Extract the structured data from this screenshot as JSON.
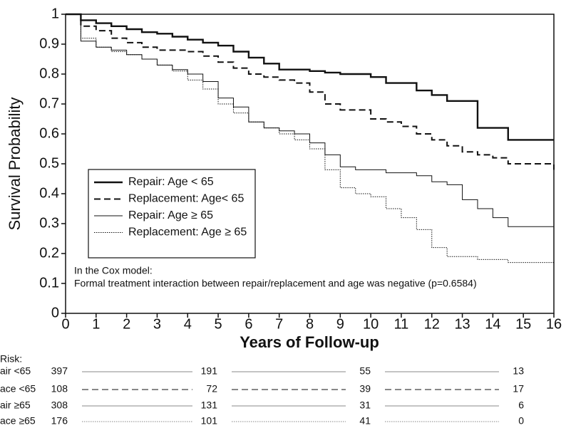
{
  "chart_data": {
    "type": "step",
    "y_label": "Survival Probability",
    "x_label": "Years of Follow-up",
    "xlim": [
      0,
      16
    ],
    "xticks": [
      0,
      1,
      2,
      3,
      4,
      5,
      6,
      7,
      8,
      9,
      10,
      11,
      12,
      13,
      14,
      15,
      16
    ],
    "ylim": [
      0,
      1
    ],
    "yticks": [
      0,
      0.1,
      0.2,
      0.3,
      0.4,
      0.5,
      0.6,
      0.7,
      0.8,
      0.9,
      1
    ],
    "legend": "center left",
    "x": [
      0,
      0.5,
      1,
      1.5,
      2,
      2.5,
      3,
      3.5,
      4,
      4.5,
      5,
      5.5,
      6,
      6.5,
      7,
      7.5,
      8,
      8.5,
      9,
      9.5,
      10,
      10.5,
      11,
      11.5,
      12,
      12.5,
      13,
      13.5,
      14,
      14.5,
      15,
      15.5,
      16
    ],
    "series": [
      {
        "name": "Repair: Age < 65",
        "color": "#111111",
        "line_style": "thick",
        "values": [
          1.0,
          0.98,
          0.97,
          0.96,
          0.95,
          0.94,
          0.935,
          0.925,
          0.915,
          0.905,
          0.895,
          0.875,
          0.855,
          0.835,
          0.815,
          0.815,
          0.81,
          0.805,
          0.8,
          0.8,
          0.79,
          0.77,
          0.77,
          0.745,
          0.73,
          0.71,
          0.71,
          0.62,
          0.62,
          0.58,
          0.58,
          0.58,
          0.58
        ]
      },
      {
        "name": "Replacement: Age< 65",
        "color": "#111111",
        "line_style": "dashed",
        "values": [
          1.0,
          0.96,
          0.945,
          0.92,
          0.905,
          0.89,
          0.88,
          0.88,
          0.875,
          0.86,
          0.84,
          0.82,
          0.8,
          0.79,
          0.78,
          0.77,
          0.74,
          0.7,
          0.68,
          0.68,
          0.65,
          0.64,
          0.625,
          0.6,
          0.58,
          0.56,
          0.54,
          0.53,
          0.52,
          0.5,
          0.5,
          0.5,
          0.48
        ]
      },
      {
        "name": "Repair: Age ≥ 65",
        "color": "#111111",
        "line_style": "thin",
        "values": [
          1.0,
          0.91,
          0.89,
          0.88,
          0.865,
          0.85,
          0.83,
          0.815,
          0.8,
          0.775,
          0.72,
          0.69,
          0.64,
          0.62,
          0.61,
          0.6,
          0.57,
          0.53,
          0.49,
          0.48,
          0.48,
          0.47,
          0.47,
          0.46,
          0.44,
          0.43,
          0.38,
          0.35,
          0.32,
          0.29,
          0.29,
          0.29,
          0.24
        ]
      },
      {
        "name": "Replacement: Age ≥ 65",
        "color": "#111111",
        "line_style": "dotted",
        "values": [
          1.0,
          0.92,
          0.89,
          0.875,
          0.865,
          0.85,
          0.83,
          0.81,
          0.78,
          0.75,
          0.7,
          0.67,
          0.64,
          0.62,
          0.6,
          0.58,
          0.55,
          0.48,
          0.42,
          0.4,
          0.39,
          0.35,
          0.32,
          0.28,
          0.22,
          0.19,
          0.19,
          0.18,
          0.18,
          0.17,
          0.17,
          0.17,
          0.17
        ]
      }
    ],
    "annotation": [
      "In the Cox model:",
      "Formal treatment interaction between repair/replacement and age was negative (p=0.6584)"
    ],
    "risk_table": {
      "title": "Risk:",
      "rows": [
        {
          "label": "air <65",
          "counts": [
            397,
            191,
            55,
            13
          ]
        },
        {
          "label": "ace <65",
          "counts": [
            108,
            72,
            39,
            17
          ]
        },
        {
          "label": "air ≥65",
          "counts": [
            308,
            131,
            31,
            6
          ]
        },
        {
          "label": "ace ≥65",
          "counts": [
            176,
            101,
            41,
            0
          ]
        }
      ]
    }
  }
}
